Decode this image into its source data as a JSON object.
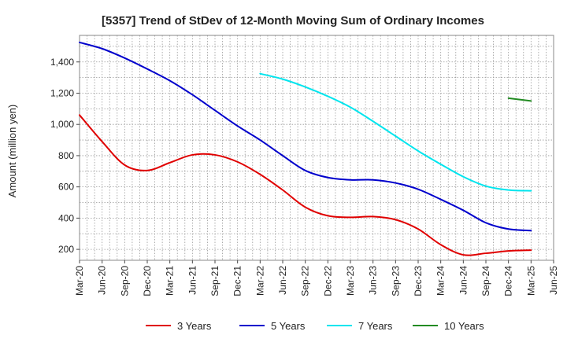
{
  "chart_data": {
    "type": "line",
    "title": "[5357]  Trend of StDev of 12-Month Moving Sum of Ordinary Incomes",
    "xlabel": "",
    "ylabel": "Amount (million yen)",
    "x_ticks": [
      "Mar-20",
      "Jun-20",
      "Sep-20",
      "Dec-20",
      "Mar-21",
      "Jun-21",
      "Sep-21",
      "Dec-21",
      "Mar-22",
      "Jun-22",
      "Sep-22",
      "Dec-22",
      "Mar-23",
      "Jun-23",
      "Sep-23",
      "Dec-23",
      "Mar-24",
      "Jun-24",
      "Sep-24",
      "Dec-24",
      "Mar-25",
      "Jun-25"
    ],
    "y_ticks": [
      200,
      400,
      600,
      800,
      1000,
      1200,
      1400
    ],
    "y_tick_labels": [
      "200",
      "400",
      "600",
      "800",
      "1,000",
      "1,200",
      "1,400"
    ],
    "ylim": [
      130,
      1570
    ],
    "xlim": [
      "Mar-20",
      "Jun-25"
    ],
    "grid": true,
    "legend_position": "bottom",
    "series": [
      {
        "name": "3 Years",
        "color": "#e00000",
        "x": [
          "Mar-20",
          "Jun-20",
          "Sep-20",
          "Dec-20",
          "Mar-21",
          "Jun-21",
          "Sep-21",
          "Dec-21",
          "Mar-22",
          "Jun-22",
          "Sep-22",
          "Dec-22",
          "Mar-23",
          "Jun-23",
          "Sep-23",
          "Dec-23",
          "Mar-24",
          "Jun-24",
          "Sep-24",
          "Dec-24",
          "Mar-25"
        ],
        "values": [
          1060,
          890,
          740,
          705,
          755,
          805,
          805,
          760,
          680,
          580,
          470,
          415,
          405,
          410,
          390,
          330,
          230,
          165,
          175,
          190,
          195
        ]
      },
      {
        "name": "5 Years",
        "color": "#0000cc",
        "x": [
          "Mar-20",
          "Jun-20",
          "Sep-20",
          "Dec-20",
          "Mar-21",
          "Jun-21",
          "Sep-21",
          "Dec-21",
          "Mar-22",
          "Jun-22",
          "Sep-22",
          "Dec-22",
          "Mar-23",
          "Jun-23",
          "Sep-23",
          "Dec-23",
          "Mar-24",
          "Jun-24",
          "Sep-24",
          "Dec-24",
          "Mar-25"
        ],
        "values": [
          1525,
          1485,
          1425,
          1355,
          1280,
          1190,
          1090,
          990,
          900,
          800,
          705,
          660,
          645,
          645,
          625,
          585,
          520,
          450,
          370,
          330,
          320
        ]
      },
      {
        "name": "7 Years",
        "color": "#00e5ee",
        "x": [
          "Mar-22",
          "Jun-22",
          "Sep-22",
          "Dec-22",
          "Mar-23",
          "Jun-23",
          "Sep-23",
          "Dec-23",
          "Mar-24",
          "Jun-24",
          "Sep-24",
          "Dec-24",
          "Mar-25"
        ],
        "values": [
          1325,
          1290,
          1240,
          1180,
          1110,
          1020,
          925,
          830,
          745,
          665,
          605,
          580,
          575
        ]
      },
      {
        "name": "10 Years",
        "color": "#228b22",
        "x": [
          "Dec-24",
          "Mar-25"
        ],
        "values": [
          1168,
          1150
        ]
      }
    ]
  }
}
